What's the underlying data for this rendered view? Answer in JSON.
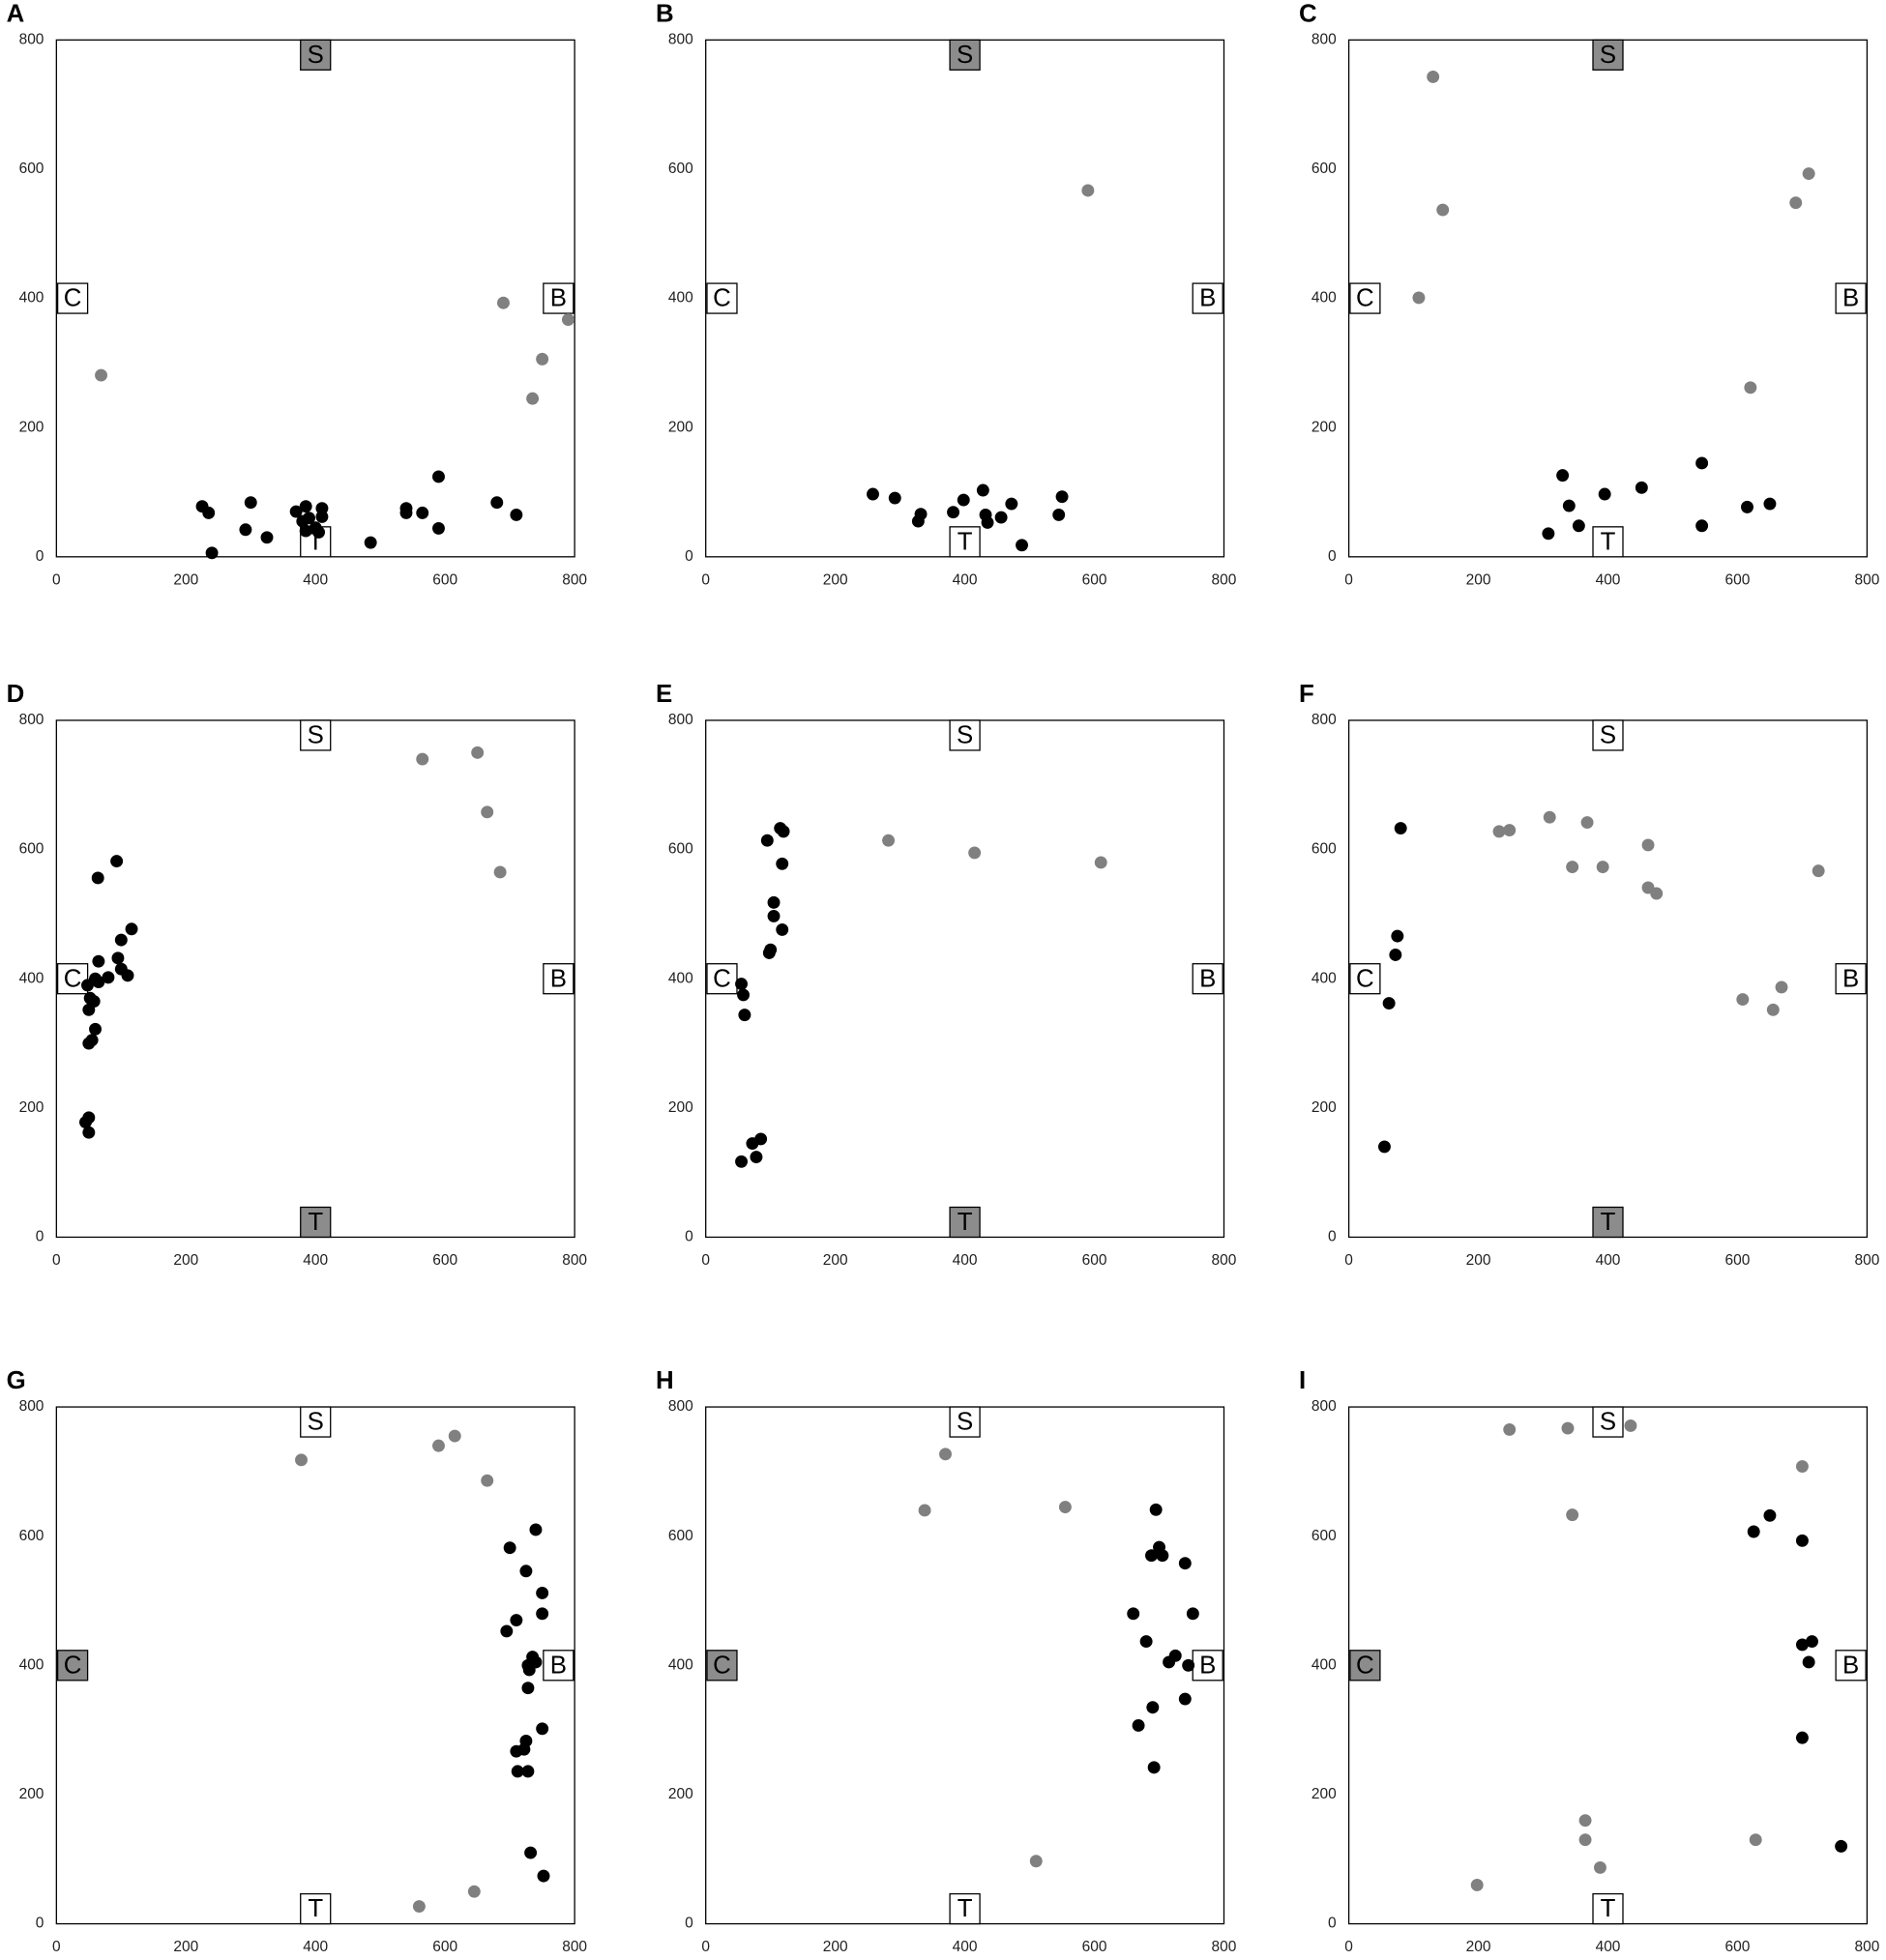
{
  "chart_data": [
    {
      "type": "scatter",
      "title": "A",
      "xlim": [
        0,
        800
      ],
      "ylim": [
        0,
        800
      ],
      "xticks": [
        0,
        200,
        400,
        600,
        800
      ],
      "yticks": [
        0,
        200,
        400,
        600,
        800
      ],
      "zone_color": "#8c8c8c",
      "zones": [
        {
          "label": "S",
          "highlight": true
        },
        {
          "label": "C",
          "highlight": false
        },
        {
          "label": "B",
          "highlight": false
        },
        {
          "label": "T",
          "highlight": false
        }
      ],
      "series": [
        {
          "color": "#808080",
          "x": [
            69,
            690,
            750,
            790,
            735
          ],
          "y": [
            281,
            393,
            306,
            367,
            245
          ]
        },
        {
          "color": "#000000",
          "x": [
            225,
            235,
            240,
            292,
            300,
            325,
            370,
            380,
            385,
            385,
            390,
            400,
            405,
            410,
            410,
            485,
            540,
            540,
            565,
            590,
            590,
            680,
            710
          ],
          "y": [
            78,
            68,
            6,
            42,
            84,
            30,
            70,
            55,
            78,
            40,
            60,
            45,
            38,
            75,
            62,
            22,
            75,
            68,
            68,
            124,
            44,
            84,
            65
          ]
        }
      ]
    },
    {
      "type": "scatter",
      "title": "B",
      "xlim": [
        0,
        800
      ],
      "ylim": [
        0,
        800
      ],
      "xticks": [
        0,
        200,
        400,
        600,
        800
      ],
      "yticks": [
        0,
        200,
        400,
        600,
        800
      ],
      "zone_color": "#8c8c8c",
      "zones": [
        {
          "label": "S",
          "highlight": true
        },
        {
          "label": "C",
          "highlight": false
        },
        {
          "label": "B",
          "highlight": false
        },
        {
          "label": "T",
          "highlight": false
        }
      ],
      "series": [
        {
          "color": "#808080",
          "x": [
            590
          ],
          "y": [
            567
          ]
        },
        {
          "color": "#000000",
          "x": [
            258,
            292,
            328,
            332,
            382,
            398,
            428,
            432,
            435,
            456,
            472,
            488,
            545,
            550
          ],
          "y": [
            97,
            91,
            55,
            66,
            69,
            88,
            103,
            65,
            53,
            61,
            82,
            18,
            65,
            93
          ]
        }
      ]
    },
    {
      "type": "scatter",
      "title": "C",
      "xlim": [
        0,
        800
      ],
      "ylim": [
        0,
        800
      ],
      "xticks": [
        0,
        200,
        400,
        600,
        800
      ],
      "yticks": [
        0,
        200,
        400,
        600,
        800
      ],
      "zone_color": "#8c8c8c",
      "zones": [
        {
          "label": "S",
          "highlight": true
        },
        {
          "label": "C",
          "highlight": false
        },
        {
          "label": "B",
          "highlight": false
        },
        {
          "label": "T",
          "highlight": false
        }
      ],
      "series": [
        {
          "color": "#808080",
          "x": [
            130,
            145,
            108,
            690,
            710,
            620
          ],
          "y": [
            743,
            537,
            401,
            548,
            593,
            262
          ]
        },
        {
          "color": "#000000",
          "x": [
            308,
            330,
            340,
            355,
            395,
            452,
            545,
            545,
            615,
            650
          ],
          "y": [
            36,
            126,
            79,
            48,
            97,
            107,
            145,
            48,
            77,
            82
          ]
        }
      ]
    },
    {
      "type": "scatter",
      "title": "D",
      "xlim": [
        0,
        800
      ],
      "ylim": [
        0,
        800
      ],
      "xticks": [
        0,
        200,
        400,
        600,
        800
      ],
      "yticks": [
        0,
        200,
        400,
        600,
        800
      ],
      "zone_color": "#8c8c8c",
      "zones": [
        {
          "label": "S",
          "highlight": false
        },
        {
          "label": "C",
          "highlight": false
        },
        {
          "label": "B",
          "highlight": false
        },
        {
          "label": "T",
          "highlight": true
        }
      ],
      "series": [
        {
          "color": "#808080",
          "x": [
            565,
            650,
            665,
            685
          ],
          "y": [
            740,
            750,
            658,
            565
          ]
        },
        {
          "color": "#000000",
          "x": [
            45,
            50,
            50,
            50,
            55,
            50,
            48,
            52,
            58,
            60,
            60,
            65,
            65,
            64,
            80,
            93,
            95,
            100,
            100,
            110,
            116
          ],
          "y": [
            178,
            185,
            162,
            300,
            305,
            352,
            390,
            370,
            365,
            322,
            400,
            427,
            395,
            556,
            402,
            582,
            432,
            460,
            415,
            405,
            477
          ]
        }
      ]
    },
    {
      "type": "scatter",
      "title": "E",
      "xlim": [
        0,
        800
      ],
      "ylim": [
        0,
        800
      ],
      "xticks": [
        0,
        200,
        400,
        600,
        800
      ],
      "yticks": [
        0,
        200,
        400,
        600,
        800
      ],
      "zone_color": "#8c8c8c",
      "zones": [
        {
          "label": "S",
          "highlight": false
        },
        {
          "label": "C",
          "highlight": false
        },
        {
          "label": "B",
          "highlight": false
        },
        {
          "label": "T",
          "highlight": true
        }
      ],
      "series": [
        {
          "color": "#808080",
          "x": [
            282,
            415,
            610
          ],
          "y": [
            614,
            595,
            580
          ]
        },
        {
          "color": "#000000",
          "x": [
            55,
            72,
            78,
            85,
            55,
            58,
            60,
            95,
            98,
            100,
            105,
            105,
            115,
            118,
            118,
            120
          ],
          "y": [
            117,
            145,
            124,
            152,
            392,
            375,
            344,
            614,
            440,
            445,
            518,
            497,
            633,
            578,
            476,
            628
          ]
        }
      ]
    },
    {
      "type": "scatter",
      "title": "F",
      "xlim": [
        0,
        800
      ],
      "ylim": [
        0,
        800
      ],
      "xticks": [
        0,
        200,
        400,
        600,
        800
      ],
      "yticks": [
        0,
        200,
        400,
        600,
        800
      ],
      "zone_color": "#8c8c8c",
      "zones": [
        {
          "label": "S",
          "highlight": false
        },
        {
          "label": "C",
          "highlight": false
        },
        {
          "label": "B",
          "highlight": false
        },
        {
          "label": "T",
          "highlight": true
        }
      ],
      "series": [
        {
          "color": "#808080",
          "x": [
            232,
            248,
            310,
            345,
            368,
            392,
            462,
            462,
            475,
            608,
            655,
            668,
            725
          ],
          "y": [
            628,
            630,
            650,
            573,
            642,
            573,
            607,
            541,
            532,
            368,
            352,
            387,
            567
          ]
        },
        {
          "color": "#000000",
          "x": [
            55,
            62,
            72,
            75,
            80
          ],
          "y": [
            140,
            362,
            437,
            466,
            633
          ]
        }
      ]
    },
    {
      "type": "scatter",
      "title": "G",
      "xlim": [
        0,
        800
      ],
      "ylim": [
        0,
        800
      ],
      "xticks": [
        0,
        200,
        400,
        600,
        800
      ],
      "yticks": [
        0,
        200,
        400,
        600,
        800
      ],
      "zone_color": "#8c8c8c",
      "zones": [
        {
          "label": "S",
          "highlight": false
        },
        {
          "label": "C",
          "highlight": true
        },
        {
          "label": "B",
          "highlight": false
        },
        {
          "label": "T",
          "highlight": false
        }
      ],
      "series": [
        {
          "color": "#808080",
          "x": [
            378,
            590,
            615,
            665,
            560,
            645
          ],
          "y": [
            718,
            740,
            755,
            686,
            27,
            50
          ]
        },
        {
          "color": "#000000",
          "x": [
            700,
            725,
            740,
            750,
            750,
            695,
            710,
            735,
            740,
            728,
            730,
            728,
            750,
            725,
            722,
            710,
            712,
            728,
            732,
            752
          ],
          "y": [
            582,
            546,
            610,
            512,
            480,
            453,
            470,
            413,
            405,
            400,
            393,
            365,
            302,
            283,
            270,
            267,
            236,
            236,
            110,
            74
          ]
        }
      ]
    },
    {
      "type": "scatter",
      "title": "H",
      "xlim": [
        0,
        800
      ],
      "ylim": [
        0,
        800
      ],
      "xticks": [
        0,
        200,
        400,
        600,
        800
      ],
      "yticks": [
        0,
        200,
        400,
        600,
        800
      ],
      "zone_color": "#8c8c8c",
      "zones": [
        {
          "label": "S",
          "highlight": false
        },
        {
          "label": "C",
          "highlight": true
        },
        {
          "label": "B",
          "highlight": false
        },
        {
          "label": "T",
          "highlight": false
        }
      ],
      "series": [
        {
          "color": "#808080",
          "x": [
            338,
            370,
            555,
            510
          ],
          "y": [
            640,
            727,
            645,
            97
          ]
        },
        {
          "color": "#000000",
          "x": [
            660,
            680,
            690,
            688,
            692,
            695,
            700,
            705,
            668,
            715,
            725,
            740,
            740,
            745,
            752
          ],
          "y": [
            480,
            437,
            335,
            570,
            242,
            641,
            583,
            570,
            307,
            405,
            415,
            558,
            348,
            400,
            480
          ]
        }
      ]
    },
    {
      "type": "scatter",
      "title": "I",
      "xlim": [
        0,
        800
      ],
      "ylim": [
        0,
        800
      ],
      "xticks": [
        0,
        200,
        400,
        600,
        800
      ],
      "yticks": [
        0,
        200,
        400,
        600,
        800
      ],
      "zone_color": "#8c8c8c",
      "zones": [
        {
          "label": "S",
          "highlight": false
        },
        {
          "label": "C",
          "highlight": true
        },
        {
          "label": "B",
          "highlight": false
        },
        {
          "label": "T",
          "highlight": false
        }
      ],
      "series": [
        {
          "color": "#808080",
          "x": [
            198,
            248,
            338,
            345,
            435,
            365,
            365,
            388,
            628,
            700
          ],
          "y": [
            60,
            765,
            767,
            633,
            771,
            160,
            130,
            87,
            130,
            708
          ]
        },
        {
          "color": "#000000",
          "x": [
            625,
            650,
            700,
            700,
            710,
            715,
            700,
            760
          ],
          "y": [
            607,
            632,
            593,
            432,
            405,
            437,
            288,
            120
          ]
        }
      ]
    }
  ]
}
